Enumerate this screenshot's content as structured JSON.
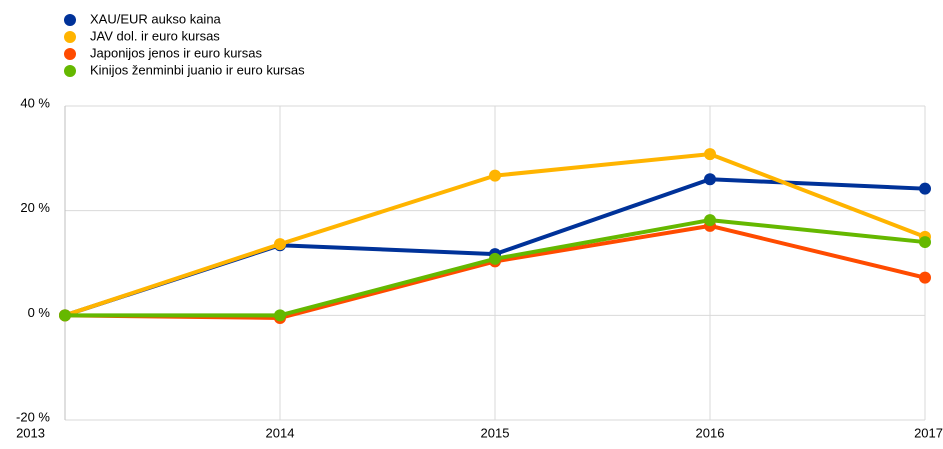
{
  "chart_data": {
    "type": "line",
    "categories": [
      "2013",
      "2014",
      "2015",
      "2016",
      "2017"
    ],
    "series": [
      {
        "name": "XAU/EUR aukso kaina",
        "color": "#003299",
        "values": [
          0,
          13.4,
          11.7,
          26,
          24.2
        ]
      },
      {
        "name": "JAV dol. ir euro kursas",
        "color": "#ffb400",
        "values": [
          0,
          13.6,
          26.7,
          30.8,
          15
        ]
      },
      {
        "name": "Japonijos jenos ir euro kursas",
        "color": "#ff4b00",
        "values": [
          0,
          -0.5,
          10.3,
          17.1,
          7.2
        ]
      },
      {
        "name": "Kinijos ženminbi juanio ir euro kursas",
        "color": "#65b800",
        "values": [
          0,
          0,
          10.8,
          18.2,
          14
        ]
      }
    ],
    "ylim": [
      -20,
      40
    ],
    "yticks": [
      {
        "value": -20,
        "label": "-20 %"
      },
      {
        "value": 0,
        "label": "0 %"
      },
      {
        "value": 20,
        "label": "20 %"
      },
      {
        "value": 40,
        "label": "40 %"
      }
    ],
    "grid": true,
    "legend": "top-left"
  }
}
